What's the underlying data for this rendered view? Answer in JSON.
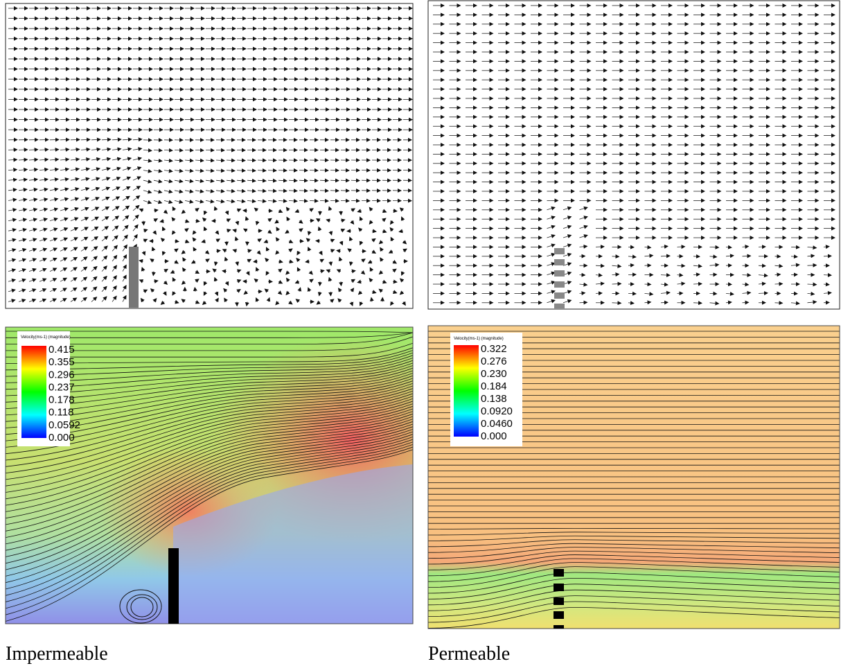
{
  "panels": [
    {
      "caption": "Impermeable",
      "colorbar": {
        "title": "Velocity(ms-1) (magnitude)",
        "labels": [
          "0.415",
          "0.355",
          "0.296",
          "0.237",
          "0.178",
          "0.118",
          "0.0592",
          "0.000"
        ]
      }
    },
    {
      "caption": "Permeable",
      "colorbar": {
        "title": "Velocity(ms-1) (magnitude)",
        "labels": [
          "0.322",
          "0.276",
          "0.230",
          "0.184",
          "0.138",
          "0.0920",
          "0.0460",
          "0.000"
        ]
      }
    }
  ]
}
